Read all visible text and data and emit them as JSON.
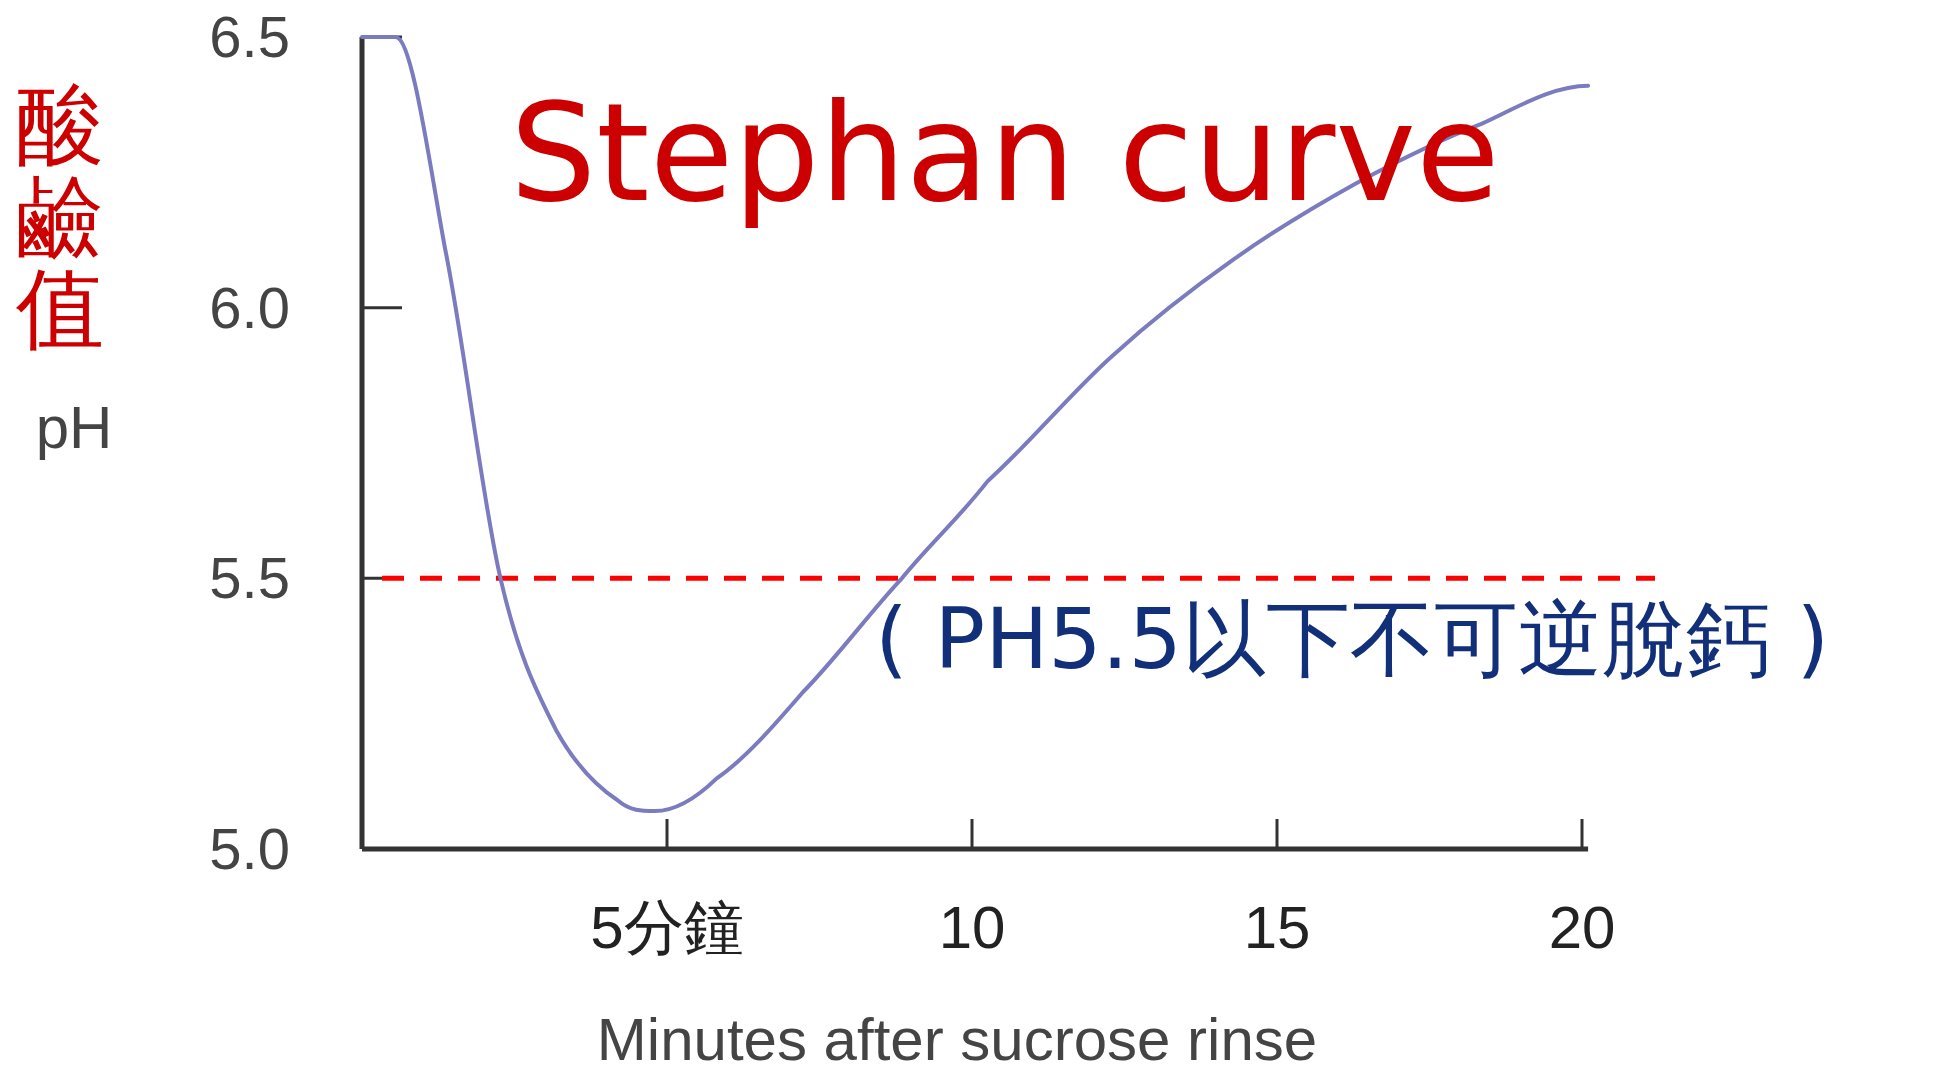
{
  "chart_data": {
    "type": "line",
    "title": "Stephan curve",
    "xlabel": "Minutes after sucrose rinse",
    "ylabel": "pH",
    "annotations": [
      "酸鹼值"
    ],
    "x": [
      0,
      0.55,
      1.36,
      2.27,
      3.18,
      4.19,
      4.8,
      5.81,
      7.23,
      8.85,
      10.26,
      12.29,
      14.3,
      16.3,
      18.36,
      20.1
    ],
    "series": [
      {
        "color": "#7b7bc0",
        "values": [
          6.5,
          6.5,
          6.11,
          5.5,
          5.22,
          5.09,
          5.07,
          5.13,
          5.29,
          5.5,
          5.68,
          5.91,
          6.09,
          6.23,
          6.34,
          6.41
        ]
      }
    ],
    "xlim": [
      0,
      20.1
    ],
    "ylim": [
      5,
      6.5
    ],
    "xticks": [
      {
        "value": 5,
        "label": "5分鐘"
      },
      10,
      15,
      20
    ],
    "yticks": [
      {
        "value": 5,
        "label": "5.0"
      },
      5.5,
      {
        "value": 6,
        "label": "6.0"
      },
      6.5
    ],
    "ref_lines": [
      {
        "axis": "y",
        "value": 5.5,
        "label": "( PH5.5以下不可逆脫鈣 )",
        "color": "#ff0000",
        "line_style": "dashed"
      }
    ],
    "grid": false,
    "marker": "none",
    "line_style": "solid"
  }
}
